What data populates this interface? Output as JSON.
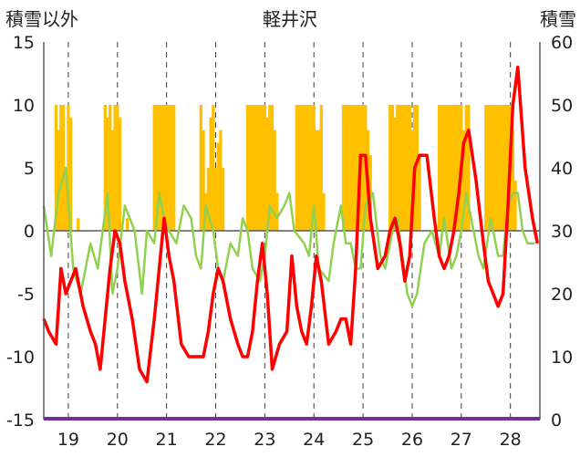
{
  "chart_data": {
    "type": "line",
    "title": "軽井沢",
    "y_left_label": "積雪以外",
    "y_right_label": "積雪",
    "y_left_range": [
      -15,
      15
    ],
    "y_left_ticks": [
      15,
      10,
      5,
      0,
      -5,
      -10,
      -15
    ],
    "y_right_range": [
      0,
      60
    ],
    "y_right_ticks": [
      60,
      50,
      40,
      30,
      20,
      10,
      0
    ],
    "x_range": [
      18.5,
      28.6
    ],
    "x_ticks": [
      19,
      20,
      21,
      22,
      23,
      24,
      25,
      26,
      27,
      28
    ],
    "grid": {
      "vertical_dashed_at_ticks": true,
      "zero_line": true
    },
    "colors": {
      "temperature": "#ff0000",
      "green_series": "#92d050",
      "precip_bars": "#ffc000",
      "snow_depth": "#7030a0",
      "axis": "#595959"
    },
    "series": [
      {
        "axis": "left",
        "style": "bar",
        "x": [
          18.75,
          18.8,
          18.85,
          18.9,
          18.95,
          19.0,
          19.05,
          19.2,
          19.75,
          19.8,
          19.85,
          19.9,
          19.95,
          20.0,
          20.05,
          20.2,
          20.75,
          20.8,
          20.85,
          20.9,
          20.95,
          21.0,
          21.05,
          21.1,
          21.15,
          21.7,
          21.75,
          21.8,
          21.85,
          21.9,
          21.95,
          22.0,
          22.05,
          22.1,
          22.15,
          22.65,
          22.7,
          22.75,
          22.8,
          22.85,
          22.9,
          22.95,
          23.0,
          23.05,
          23.1,
          23.15,
          23.2,
          23.25,
          23.65,
          23.7,
          23.75,
          23.8,
          23.85,
          23.9,
          23.95,
          24.0,
          24.05,
          24.1,
          24.15,
          24.2,
          24.6,
          24.65,
          24.7,
          24.75,
          24.8,
          24.85,
          24.9,
          24.95,
          25.0,
          25.05,
          25.1,
          25.15,
          25.55,
          25.6,
          25.65,
          25.7,
          25.75,
          25.8,
          25.85,
          25.9,
          25.95,
          26.0,
          26.05,
          26.1,
          26.15,
          26.55,
          26.6,
          26.65,
          26.7,
          26.75,
          26.8,
          26.85,
          26.9,
          26.95,
          27.0,
          27.05,
          27.1,
          27.15,
          27.5,
          27.55,
          27.6,
          27.65,
          27.7,
          27.75,
          27.8,
          27.85,
          27.9,
          27.95,
          28.0,
          28.05,
          28.1
        ],
        "values": [
          10,
          8,
          10,
          10,
          5,
          10,
          9,
          1,
          10,
          9,
          10,
          8,
          10,
          10,
          9,
          1,
          10,
          10,
          10,
          10,
          10,
          10,
          10,
          10,
          10,
          10,
          8,
          3,
          5,
          9,
          10,
          5,
          7,
          8,
          5,
          10,
          10,
          10,
          10,
          10,
          10,
          10,
          10,
          9,
          10,
          10,
          8,
          3,
          10,
          10,
          10,
          10,
          10,
          10,
          10,
          10,
          8,
          8,
          10,
          3,
          10,
          10,
          10,
          10,
          10,
          10,
          10,
          10,
          10,
          10,
          8,
          6,
          10,
          10,
          9,
          10,
          10,
          10,
          10,
          10,
          10,
          8,
          10,
          10,
          6,
          10,
          10,
          10,
          10,
          10,
          10,
          10,
          10,
          10,
          10,
          8,
          10,
          10,
          10,
          10,
          10,
          10,
          10,
          10,
          10,
          10,
          10,
          10,
          10,
          8,
          4
        ]
      },
      {
        "axis": "left",
        "style": "line",
        "x": [
          18.5,
          18.65,
          18.8,
          18.95,
          19.1,
          19.25,
          19.45,
          19.6,
          19.8,
          19.9,
          20.0,
          20.15,
          20.35,
          20.5,
          20.6,
          20.75,
          20.85,
          20.95,
          21.05,
          21.2,
          21.35,
          21.5,
          21.6,
          21.7,
          21.8,
          21.95,
          22.05,
          22.15,
          22.3,
          22.45,
          22.55,
          22.65,
          22.75,
          22.9,
          23.0,
          23.1,
          23.25,
          23.4,
          23.5,
          23.6,
          23.8,
          23.9,
          24.0,
          24.1,
          24.3,
          24.4,
          24.55,
          24.65,
          24.75,
          24.85,
          24.95,
          25.05,
          25.2,
          25.35,
          25.45,
          25.6,
          25.7,
          25.8,
          25.9,
          26.0,
          26.1,
          26.25,
          26.4,
          26.55,
          26.65,
          26.8,
          26.9,
          27.0,
          27.1,
          27.2,
          27.35,
          27.45,
          27.6,
          27.75,
          27.85,
          27.95,
          28.05,
          28.15,
          28.25,
          28.35,
          28.5
        ],
        "values": [
          2,
          -2,
          3,
          5,
          -3,
          -5,
          -1,
          -3,
          3,
          -5,
          -3,
          2,
          0,
          -5,
          0,
          -1,
          3,
          1,
          0,
          -1,
          2,
          1,
          -2,
          -3,
          2,
          0,
          -3,
          -4,
          -1,
          -2,
          1,
          0,
          -3,
          -4,
          -2,
          2,
          1,
          2,
          3,
          0,
          -1,
          -2,
          2,
          -3,
          -4,
          -1,
          2,
          -1,
          -1,
          -3,
          -3,
          2,
          3,
          -2,
          -3,
          0,
          1,
          -2,
          -5,
          -6,
          -5,
          -1,
          0,
          -2,
          1,
          -3,
          -2,
          0,
          3,
          1,
          -2,
          -3,
          1,
          -2,
          -2,
          2,
          3,
          3,
          0,
          -1,
          -1
        ]
      },
      {
        "axis": "left",
        "style": "line",
        "x": [
          18.5,
          18.6,
          18.75,
          18.85,
          18.95,
          19.05,
          19.15,
          19.3,
          19.45,
          19.55,
          19.65,
          19.75,
          19.85,
          19.95,
          20.05,
          20.15,
          20.3,
          20.45,
          20.6,
          20.75,
          20.85,
          20.95,
          21.05,
          21.15,
          21.3,
          21.45,
          21.55,
          21.65,
          21.75,
          21.85,
          21.95,
          22.05,
          22.15,
          22.3,
          22.45,
          22.55,
          22.65,
          22.75,
          22.85,
          22.95,
          23.05,
          23.15,
          23.3,
          23.45,
          23.55,
          23.65,
          23.75,
          23.85,
          23.95,
          24.05,
          24.15,
          24.3,
          24.45,
          24.55,
          24.65,
          24.75,
          24.85,
          24.95,
          25.05,
          25.15,
          25.3,
          25.45,
          25.55,
          25.65,
          25.75,
          25.85,
          25.95,
          26.05,
          26.15,
          26.3,
          26.45,
          26.55,
          26.65,
          26.75,
          26.85,
          26.95,
          27.05,
          27.15,
          27.3,
          27.45,
          27.55,
          27.65,
          27.75,
          27.85,
          27.95,
          28.05,
          28.15,
          28.3,
          28.45,
          28.55
        ],
        "values": [
          -7,
          -8,
          -9,
          -3,
          -5,
          -4,
          -3,
          -6,
          -8,
          -9,
          -11,
          -7,
          -3,
          0,
          -1,
          -4,
          -7,
          -11,
          -12,
          -7,
          -3,
          1,
          -2,
          -4,
          -9,
          -10,
          -10,
          -10,
          -10,
          -8,
          -5,
          -3,
          -4,
          -7,
          -9,
          -10,
          -10,
          -8,
          -4,
          -1,
          -5,
          -11,
          -9,
          -8,
          -2,
          -6,
          -8,
          -9,
          -6,
          -2,
          -4,
          -9,
          -8,
          -7,
          -7,
          -9,
          -3,
          6,
          6,
          1,
          -3,
          -2,
          0,
          1,
          -1,
          -4,
          -2,
          5,
          6,
          6,
          1,
          -2,
          -3,
          -2,
          0,
          3,
          7,
          8,
          4,
          -1,
          -4,
          -5,
          -6,
          -5,
          2,
          10,
          13,
          5,
          1,
          -1
        ]
      },
      {
        "axis": "right",
        "style": "line",
        "x": [
          18.5,
          28.6
        ],
        "values": [
          0,
          0
        ]
      }
    ]
  }
}
